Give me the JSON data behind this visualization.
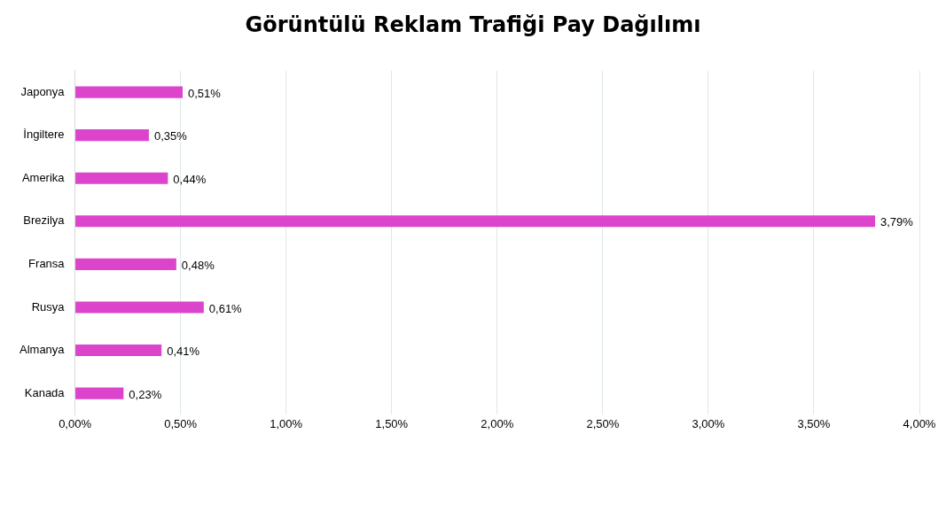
{
  "chart_data": {
    "type": "bar",
    "orientation": "horizontal",
    "title": "Görüntülü Reklam Trafiği Pay Dağılımı",
    "categories": [
      "Japonya",
      "İngiltere",
      "Amerika",
      "Brezilya",
      "Fransa",
      "Rusya",
      "Almanya",
      "Kanada"
    ],
    "values": [
      0.51,
      0.35,
      0.44,
      3.79,
      0.48,
      0.61,
      0.41,
      0.23
    ],
    "value_labels": [
      "0,51%",
      "0,35%",
      "0,44%",
      "3,79%",
      "0,48%",
      "0,61%",
      "0,41%",
      "0,23%"
    ],
    "color": "#dd44cc",
    "xlim": [
      0,
      4
    ],
    "xticks": [
      {
        "value": 0,
        "label": "0,00%"
      },
      {
        "value": 0.5,
        "label": "0,50%"
      },
      {
        "value": 1,
        "label": "1,00%"
      },
      {
        "value": 1.5,
        "label": "1,50%"
      },
      {
        "value": 2,
        "label": "2,00%"
      },
      {
        "value": 2.5,
        "label": "2,50%"
      },
      {
        "value": 3,
        "label": "3,00%"
      },
      {
        "value": 3.5,
        "label": "3,50%"
      },
      {
        "value": 4,
        "label": "4,00%"
      }
    ],
    "grid": "x",
    "legend": false
  }
}
